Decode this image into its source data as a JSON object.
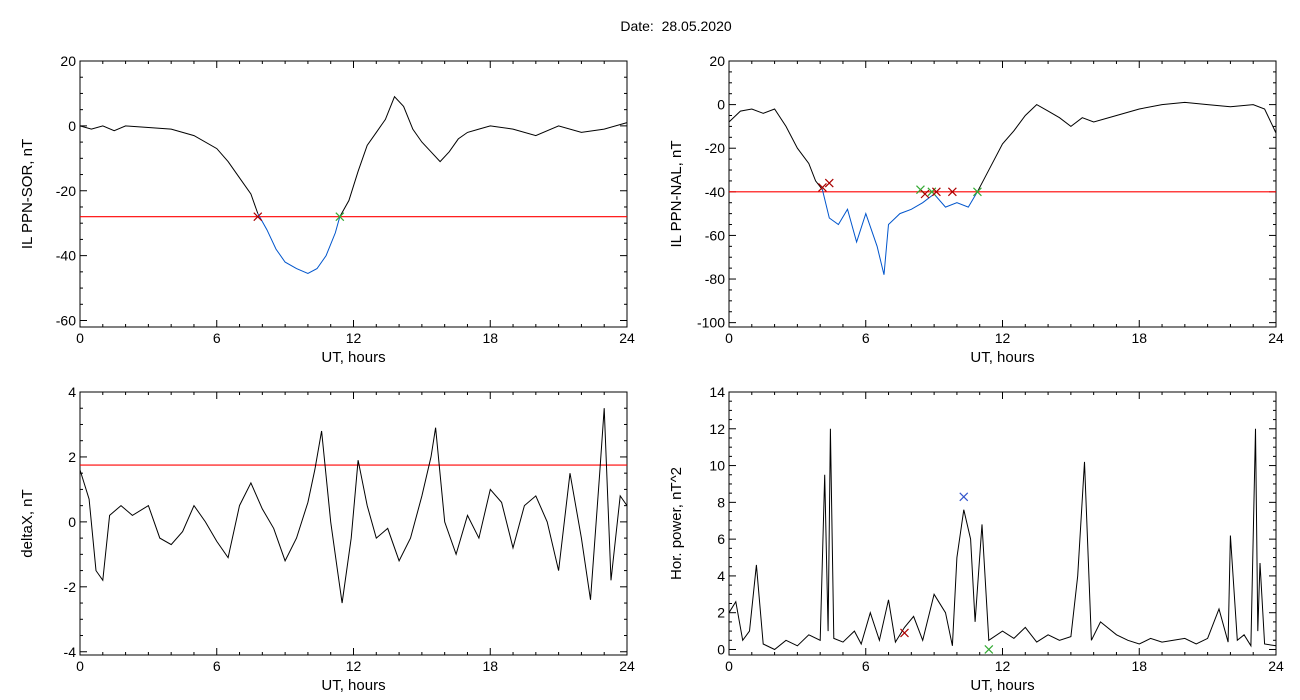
{
  "header": {
    "date_label": "Date:",
    "date_value": "28.05.2020"
  },
  "chart_data": [
    {
      "type": "line",
      "ylabel": "IL PPN-SOR, nT",
      "xlabel": "UT, hours",
      "xlim": [
        0,
        24
      ],
      "ylim": [
        -62,
        20
      ],
      "xticks": [
        0,
        6,
        12,
        18,
        24
      ],
      "yticks": [
        20,
        0,
        -20,
        -40,
        -60
      ],
      "threshold": -28,
      "threshold_color": "#ff0000",
      "series": [
        {
          "color": "#000000",
          "points": [
            [
              0,
              0
            ],
            [
              0.5,
              -1
            ],
            [
              1,
              0
            ],
            [
              1.5,
              -1.5
            ],
            [
              2,
              0
            ],
            [
              3,
              -0.5
            ],
            [
              4,
              -1
            ],
            [
              5,
              -3
            ],
            [
              6,
              -7
            ],
            [
              6.5,
              -11
            ],
            [
              7,
              -16
            ],
            [
              7.5,
              -21
            ],
            [
              7.8,
              -27
            ]
          ]
        },
        {
          "color": "#0055cc",
          "points": [
            [
              7.8,
              -27
            ],
            [
              8.2,
              -32
            ],
            [
              8.6,
              -38
            ],
            [
              9,
              -42
            ],
            [
              9.5,
              -44
            ],
            [
              10,
              -45.5
            ],
            [
              10.4,
              -44
            ],
            [
              10.8,
              -40
            ],
            [
              11.2,
              -33
            ],
            [
              11.4,
              -28
            ]
          ]
        },
        {
          "color": "#000000",
          "points": [
            [
              11.4,
              -28
            ],
            [
              11.8,
              -23
            ],
            [
              12.2,
              -14
            ],
            [
              12.6,
              -6
            ],
            [
              13,
              -2
            ],
            [
              13.4,
              2
            ],
            [
              13.8,
              9
            ],
            [
              14.2,
              6
            ],
            [
              14.6,
              -1
            ],
            [
              15,
              -5
            ],
            [
              15.4,
              -8
            ],
            [
              15.8,
              -11
            ],
            [
              16.2,
              -8
            ],
            [
              16.6,
              -4
            ],
            [
              17,
              -2
            ],
            [
              17.5,
              -1
            ],
            [
              18,
              0
            ],
            [
              19,
              -1
            ],
            [
              20,
              -3
            ],
            [
              21,
              0
            ],
            [
              22,
              -2
            ],
            [
              23,
              -1
            ],
            [
              24,
              1
            ]
          ]
        }
      ],
      "markers": [
        {
          "x": 7.8,
          "y": -28,
          "color": "#aa0000"
        },
        {
          "x": 11.4,
          "y": -28,
          "color": "#33aa33"
        }
      ]
    },
    {
      "type": "line",
      "ylabel": "IL PPN-NAL, nT",
      "xlabel": "UT, hours",
      "xlim": [
        0,
        24
      ],
      "ylim": [
        -102,
        20
      ],
      "xticks": [
        0,
        6,
        12,
        18,
        24
      ],
      "yticks": [
        20,
        0,
        -20,
        -40,
        -60,
        -80,
        -100
      ],
      "threshold": -40,
      "threshold_color": "#ff0000",
      "series": [
        {
          "color": "#000000",
          "points": [
            [
              0,
              -8
            ],
            [
              0.5,
              -3
            ],
            [
              1,
              -2
            ],
            [
              1.5,
              -4
            ],
            [
              2,
              -2
            ],
            [
              2.5,
              -10
            ],
            [
              3,
              -20
            ],
            [
              3.5,
              -27
            ],
            [
              3.8,
              -35
            ],
            [
              4.1,
              -39
            ]
          ]
        },
        {
          "color": "#0055cc",
          "points": [
            [
              4.1,
              -39
            ],
            [
              4.4,
              -52
            ],
            [
              4.8,
              -55
            ],
            [
              5.2,
              -48
            ],
            [
              5.6,
              -63
            ],
            [
              6,
              -50
            ],
            [
              6.5,
              -65
            ],
            [
              6.8,
              -78
            ],
            [
              7,
              -55
            ],
            [
              7.5,
              -50
            ],
            [
              8,
              -48
            ],
            [
              8.5,
              -45
            ],
            [
              9,
              -41
            ],
            [
              9.5,
              -47
            ],
            [
              10,
              -45
            ],
            [
              10.5,
              -47
            ],
            [
              10.9,
              -40
            ]
          ]
        },
        {
          "color": "#000000",
          "points": [
            [
              10.9,
              -40
            ],
            [
              11.5,
              -28
            ],
            [
              12,
              -18
            ],
            [
              12.5,
              -12
            ],
            [
              13,
              -5
            ],
            [
              13.5,
              0
            ],
            [
              14,
              -3
            ],
            [
              14.5,
              -6
            ],
            [
              15,
              -10
            ],
            [
              15.5,
              -6
            ],
            [
              16,
              -8
            ],
            [
              17,
              -5
            ],
            [
              18,
              -2
            ],
            [
              19,
              0
            ],
            [
              20,
              1
            ],
            [
              21,
              0
            ],
            [
              22,
              -1
            ],
            [
              23,
              0
            ],
            [
              23.5,
              -2
            ],
            [
              24,
              -13
            ]
          ]
        }
      ],
      "markers": [
        {
          "x": 4.1,
          "y": -38,
          "color": "#aa0000"
        },
        {
          "x": 4.4,
          "y": -36,
          "color": "#aa0000"
        },
        {
          "x": 8.4,
          "y": -39,
          "color": "#33aa33"
        },
        {
          "x": 8.6,
          "y": -41,
          "color": "#aa0000"
        },
        {
          "x": 8.9,
          "y": -40,
          "color": "#33aa33"
        },
        {
          "x": 9.1,
          "y": -40,
          "color": "#aa0000"
        },
        {
          "x": 9.8,
          "y": -40,
          "color": "#aa0000"
        },
        {
          "x": 10.9,
          "y": -40,
          "color": "#33aa33"
        }
      ]
    },
    {
      "type": "line",
      "ylabel": "deltaX, nT",
      "xlabel": "UT, hours",
      "xlim": [
        0,
        24
      ],
      "ylim": [
        -4.1,
        4
      ],
      "xticks": [
        0,
        6,
        12,
        18,
        24
      ],
      "yticks": [
        4,
        2,
        0,
        -2,
        -4
      ],
      "threshold": 1.75,
      "threshold_color": "#ff0000",
      "series": [
        {
          "color": "#000000",
          "points": [
            [
              0,
              1.6
            ],
            [
              0.4,
              0.7
            ],
            [
              0.7,
              -1.5
            ],
            [
              1,
              -1.8
            ],
            [
              1.3,
              0.2
            ],
            [
              1.8,
              0.5
            ],
            [
              2.3,
              0.2
            ],
            [
              3,
              0.5
            ],
            [
              3.5,
              -0.5
            ],
            [
              4,
              -0.7
            ],
            [
              4.5,
              -0.3
            ],
            [
              5,
              0.5
            ],
            [
              5.5,
              0
            ],
            [
              6,
              -0.6
            ],
            [
              6.5,
              -1.1
            ],
            [
              7,
              0.5
            ],
            [
              7.5,
              1.2
            ],
            [
              8,
              0.4
            ],
            [
              8.5,
              -0.2
            ],
            [
              9,
              -1.2
            ],
            [
              9.5,
              -0.5
            ],
            [
              10,
              0.6
            ],
            [
              10.3,
              1.6
            ],
            [
              10.6,
              2.8
            ],
            [
              11,
              0
            ],
            [
              11.3,
              -1.5
            ],
            [
              11.5,
              -2.5
            ],
            [
              11.9,
              -0.5
            ],
            [
              12.2,
              1.9
            ],
            [
              12.6,
              0.5
            ],
            [
              13,
              -0.5
            ],
            [
              13.5,
              -0.2
            ],
            [
              14,
              -1.2
            ],
            [
              14.5,
              -0.5
            ],
            [
              15,
              0.8
            ],
            [
              15.4,
              2.0
            ],
            [
              15.6,
              2.9
            ],
            [
              16,
              0
            ],
            [
              16.5,
              -1
            ],
            [
              17,
              0.2
            ],
            [
              17.5,
              -0.5
            ],
            [
              18,
              1.0
            ],
            [
              18.5,
              0.6
            ],
            [
              19,
              -0.8
            ],
            [
              19.5,
              0.5
            ],
            [
              20,
              0.8
            ],
            [
              20.5,
              0
            ],
            [
              21,
              -1.5
            ],
            [
              21.5,
              1.5
            ],
            [
              22,
              -0.5
            ],
            [
              22.4,
              -2.4
            ],
            [
              22.8,
              1.5
            ],
            [
              23,
              3.5
            ],
            [
              23.3,
              -1.8
            ],
            [
              23.7,
              0.8
            ],
            [
              24,
              0.5
            ]
          ]
        }
      ],
      "markers": []
    },
    {
      "type": "line",
      "ylabel": "Hor. power, nT^2",
      "xlabel": "UT, hours",
      "xlim": [
        0,
        24
      ],
      "ylim": [
        -0.3,
        14
      ],
      "xticks": [
        0,
        6,
        12,
        18,
        24
      ],
      "yticks": [
        14,
        12,
        10,
        8,
        6,
        4,
        2,
        0
      ],
      "threshold": null,
      "threshold_color": "#ff0000",
      "series": [
        {
          "color": "#000000",
          "points": [
            [
              0,
              2
            ],
            [
              0.3,
              2.6
            ],
            [
              0.6,
              0.5
            ],
            [
              0.9,
              1
            ],
            [
              1.2,
              4.6
            ],
            [
              1.5,
              0.3
            ],
            [
              2,
              0
            ],
            [
              2.5,
              0.5
            ],
            [
              3,
              0.2
            ],
            [
              3.5,
              0.8
            ],
            [
              4,
              0.5
            ],
            [
              4.2,
              9.5
            ],
            [
              4.35,
              1
            ],
            [
              4.45,
              12
            ],
            [
              4.6,
              0.6
            ],
            [
              5,
              0.4
            ],
            [
              5.5,
              1
            ],
            [
              5.8,
              0.3
            ],
            [
              6.2,
              2
            ],
            [
              6.6,
              0.5
            ],
            [
              7,
              2.7
            ],
            [
              7.3,
              0.4
            ],
            [
              7.7,
              1.2
            ],
            [
              8.1,
              1.8
            ],
            [
              8.5,
              0.5
            ],
            [
              9,
              3
            ],
            [
              9.5,
              2
            ],
            [
              9.8,
              0.2
            ],
            [
              10,
              5
            ],
            [
              10.3,
              7.6
            ],
            [
              10.6,
              6.0
            ],
            [
              10.8,
              1.5
            ],
            [
              11.1,
              6.8
            ],
            [
              11.4,
              0.5
            ],
            [
              12,
              1
            ],
            [
              12.5,
              0.6
            ],
            [
              13,
              1.2
            ],
            [
              13.5,
              0.4
            ],
            [
              14,
              0.8
            ],
            [
              14.5,
              0.5
            ],
            [
              15,
              0.7
            ],
            [
              15.3,
              4
            ],
            [
              15.6,
              10.2
            ],
            [
              15.9,
              0.5
            ],
            [
              16.3,
              1.5
            ],
            [
              17,
              0.8
            ],
            [
              17.5,
              0.5
            ],
            [
              18,
              0.3
            ],
            [
              18.5,
              0.6
            ],
            [
              19,
              0.4
            ],
            [
              19.5,
              0.5
            ],
            [
              20,
              0.6
            ],
            [
              20.5,
              0.3
            ],
            [
              21,
              0.6
            ],
            [
              21.5,
              2.2
            ],
            [
              21.9,
              0.4
            ],
            [
              22,
              6.2
            ],
            [
              22.3,
              0.5
            ],
            [
              22.6,
              0.8
            ],
            [
              22.9,
              0.2
            ],
            [
              23.1,
              12
            ],
            [
              23.2,
              1
            ],
            [
              23.3,
              4.7
            ],
            [
              23.5,
              0.3
            ],
            [
              24,
              0.2
            ]
          ]
        }
      ],
      "markers": [
        {
          "x": 7.7,
          "y": 0.9,
          "color": "#aa0000"
        },
        {
          "x": 10.3,
          "y": 8.3,
          "color": "#3355cc"
        },
        {
          "x": 11.4,
          "y": 0,
          "color": "#33aa33"
        }
      ]
    }
  ]
}
